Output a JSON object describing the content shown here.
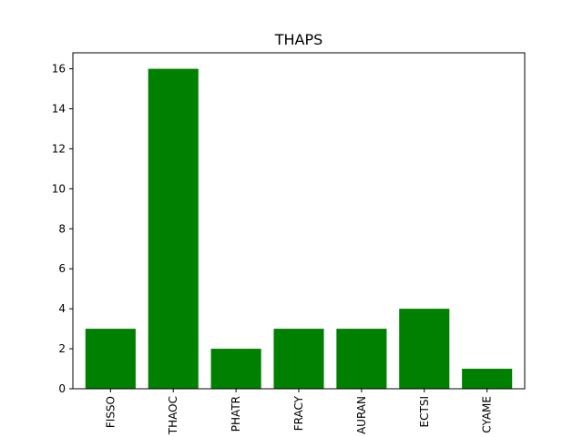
{
  "chart_data": {
    "type": "bar",
    "title": "THAPS",
    "xlabel": "",
    "ylabel": "",
    "categories": [
      "FISSO",
      "THAOC",
      "PHATR",
      "FRACY",
      "AURAN",
      "ECTSI",
      "CYAME"
    ],
    "values": [
      3,
      16,
      2,
      3,
      3,
      4,
      1
    ],
    "yticks": [
      "0",
      "2",
      "4",
      "6",
      "8",
      "10",
      "12",
      "14",
      "16"
    ],
    "ylim": [
      0,
      16.8
    ],
    "bar_color": "#008000",
    "grid": false,
    "legend": "none"
  }
}
